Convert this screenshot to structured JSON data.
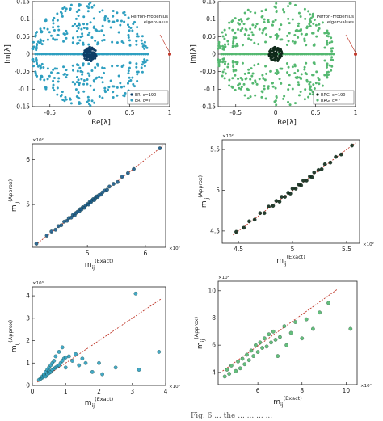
{
  "chart_data": [
    {
      "id": "p1",
      "type": "scatter",
      "xlabel": "Re[λ]",
      "ylabel": "Im[λ]",
      "xlim": [
        -0.72,
        1.0
      ],
      "ylim": [
        -0.15,
        0.15
      ],
      "xticks": [
        -0.5,
        0,
        0.5,
        1
      ],
      "xtick_labels": [
        "-0.5",
        "0",
        "0.5",
        "1"
      ],
      "yticks": [
        -0.15,
        -0.1,
        -0.05,
        0,
        0.05,
        0.1,
        0.15
      ],
      "ytick_labels": [
        "-0.15",
        "-0.1",
        "-0.05",
        "0",
        "0.05",
        "0.1",
        "0.15"
      ],
      "grid": false,
      "legend_position": "bottom-right",
      "annotation": {
        "text": [
          "Perron-Frobenius",
          "eigenvalue"
        ],
        "x": 1.0,
        "y": 0.0
      },
      "series": [
        {
          "name": "ER, c=190",
          "color": "#0d3d66",
          "marker": "dot"
        },
        {
          "name": "ER, c=7",
          "color": "#2e9fc0",
          "marker": "dot"
        }
      ]
    },
    {
      "id": "p2",
      "type": "scatter",
      "xlabel": "Re[λ]",
      "ylabel": "Im[λ]",
      "xlim": [
        -0.72,
        1.0
      ],
      "ylim": [
        -0.15,
        0.15
      ],
      "xticks": [
        -0.5,
        0,
        0.5,
        1
      ],
      "xtick_labels": [
        "-0.5",
        "0",
        "0.5",
        "1"
      ],
      "yticks": [
        -0.15,
        -0.1,
        -0.05,
        0,
        0.05,
        0.1,
        0.15
      ],
      "ytick_labels": [
        "-0.15",
        "-0.1",
        "-0.05",
        "0",
        "0.05",
        "0.1",
        "0.15"
      ],
      "grid": false,
      "legend_position": "bottom-right",
      "annotation": {
        "text": [
          "Perron-Frobenius",
          "eigenvalues"
        ],
        "x": 1.0,
        "y": 0.0
      },
      "series": [
        {
          "name": "RRG, c=190",
          "color": "#0f2a1a",
          "marker": "dot"
        },
        {
          "name": "RRG, c=7",
          "color": "#54b870",
          "marker": "dot"
        }
      ]
    },
    {
      "id": "p3",
      "type": "scatter",
      "xlabel": "m_ij^(Exact)",
      "ylabel": "m_ij^(Approx)",
      "xlim": [
        4.05,
        6.35
      ],
      "ylim": [
        4.05,
        6.35
      ],
      "xticks": [
        5,
        6
      ],
      "xtick_labels": [
        "5",
        "6"
      ],
      "yticks": [
        5,
        6
      ],
      "ytick_labels": [
        "5",
        "6"
      ],
      "x_exponent": "×10²",
      "y_exponent": "×10²",
      "reference_line": {
        "x": [
          4.1,
          6.3
        ],
        "y": [
          4.1,
          6.3
        ],
        "color": "#c0392b"
      },
      "color": "#1c5d8c",
      "points": [
        [
          4.12,
          4.13
        ],
        [
          4.3,
          4.31
        ],
        [
          4.38,
          4.4
        ],
        [
          4.45,
          4.44
        ],
        [
          4.5,
          4.52
        ],
        [
          4.55,
          4.54
        ],
        [
          4.6,
          4.62
        ],
        [
          4.65,
          4.64
        ],
        [
          4.68,
          4.7
        ],
        [
          4.72,
          4.71
        ],
        [
          4.75,
          4.77
        ],
        [
          4.78,
          4.76
        ],
        [
          4.8,
          4.81
        ],
        [
          4.83,
          4.84
        ],
        [
          4.86,
          4.85
        ],
        [
          4.88,
          4.9
        ],
        [
          4.9,
          4.89
        ],
        [
          4.92,
          4.94
        ],
        [
          4.95,
          4.93
        ],
        [
          4.97,
          4.98
        ],
        [
          5.0,
          5.01
        ],
        [
          5.02,
          5.0
        ],
        [
          5.04,
          5.06
        ],
        [
          5.06,
          5.05
        ],
        [
          5.08,
          5.09
        ],
        [
          5.1,
          5.12
        ],
        [
          5.12,
          5.1
        ],
        [
          5.14,
          5.15
        ],
        [
          5.16,
          5.18
        ],
        [
          5.18,
          5.17
        ],
        [
          5.2,
          5.21
        ],
        [
          5.23,
          5.22
        ],
        [
          5.26,
          5.27
        ],
        [
          5.3,
          5.31
        ],
        [
          5.34,
          5.33
        ],
        [
          5.38,
          5.4
        ],
        [
          5.45,
          5.46
        ],
        [
          5.52,
          5.5
        ],
        [
          5.6,
          5.62
        ],
        [
          5.7,
          5.7
        ],
        [
          5.8,
          5.79
        ],
        [
          6.25,
          6.25
        ]
      ]
    },
    {
      "id": "p4",
      "type": "scatter",
      "xlabel": "m_ij^(Exact)",
      "ylabel": "m_ij^(Approx)",
      "xlim": [
        4.35,
        5.62
      ],
      "ylim": [
        4.35,
        5.62
      ],
      "xticks": [
        4.5,
        5,
        5.5
      ],
      "xtick_labels": [
        "4.5",
        "5",
        "5.5"
      ],
      "yticks": [
        4.5,
        5,
        5.5
      ],
      "ytick_labels": [
        "4.5",
        "5",
        "5.5"
      ],
      "x_exponent": "×10²",
      "y_exponent": "×10²",
      "reference_line": {
        "x": [
          4.45,
          5.58
        ],
        "y": [
          4.45,
          5.58
        ],
        "color": "#c0392b"
      },
      "color": "#0f2a1a",
      "points": [
        [
          4.48,
          4.49
        ],
        [
          4.55,
          4.54
        ],
        [
          4.6,
          4.62
        ],
        [
          4.65,
          4.64
        ],
        [
          4.7,
          4.72
        ],
        [
          4.74,
          4.72
        ],
        [
          4.78,
          4.8
        ],
        [
          4.82,
          4.81
        ],
        [
          4.85,
          4.87
        ],
        [
          4.88,
          4.86
        ],
        [
          4.9,
          4.92
        ],
        [
          4.93,
          4.92
        ],
        [
          4.96,
          4.97
        ],
        [
          4.98,
          4.96
        ],
        [
          5.0,
          5.02
        ],
        [
          5.03,
          5.02
        ],
        [
          5.06,
          5.07
        ],
        [
          5.08,
          5.06
        ],
        [
          5.1,
          5.12
        ],
        [
          5.13,
          5.12
        ],
        [
          5.16,
          5.17
        ],
        [
          5.18,
          5.16
        ],
        [
          5.2,
          5.22
        ],
        [
          5.24,
          5.25
        ],
        [
          5.27,
          5.26
        ],
        [
          5.3,
          5.32
        ],
        [
          5.35,
          5.34
        ],
        [
          5.4,
          5.41
        ],
        [
          5.45,
          5.44
        ],
        [
          5.55,
          5.55
        ]
      ]
    },
    {
      "id": "p5",
      "type": "scatter",
      "xlabel": "m_ij^(Exact)",
      "ylabel": "m_ij^(Approx)",
      "xlim": [
        0,
        4.0
      ],
      "ylim": [
        0,
        4.4
      ],
      "xticks": [
        0,
        1,
        2,
        3,
        4
      ],
      "xtick_labels": [
        "0",
        "1",
        "2",
        "3",
        "4"
      ],
      "yticks": [
        0,
        1,
        2,
        3,
        4
      ],
      "ytick_labels": [
        "0",
        "1",
        "2",
        "3",
        "4"
      ],
      "x_exponent": "×10³",
      "y_exponent": "×10³",
      "reference_line": {
        "x": [
          0.15,
          3.9
        ],
        "y": [
          0.15,
          3.9
        ],
        "color": "#c0392b"
      },
      "color": "#2e9fc0",
      "points": [
        [
          0.2,
          0.25
        ],
        [
          0.25,
          0.3
        ],
        [
          0.3,
          0.35
        ],
        [
          0.3,
          0.4
        ],
        [
          0.35,
          0.45
        ],
        [
          0.35,
          0.5
        ],
        [
          0.4,
          0.4
        ],
        [
          0.4,
          0.6
        ],
        [
          0.45,
          0.5
        ],
        [
          0.45,
          0.7
        ],
        [
          0.5,
          0.55
        ],
        [
          0.5,
          0.65
        ],
        [
          0.5,
          0.8
        ],
        [
          0.55,
          0.6
        ],
        [
          0.55,
          0.9
        ],
        [
          0.6,
          0.7
        ],
        [
          0.6,
          1.0
        ],
        [
          0.65,
          0.75
        ],
        [
          0.65,
          1.1
        ],
        [
          0.7,
          0.8
        ],
        [
          0.7,
          1.3
        ],
        [
          0.75,
          0.85
        ],
        [
          0.8,
          0.9
        ],
        [
          0.8,
          1.5
        ],
        [
          0.85,
          1.0
        ],
        [
          0.9,
          1.1
        ],
        [
          0.9,
          1.7
        ],
        [
          0.95,
          1.2
        ],
        [
          1.0,
          1.25
        ],
        [
          1.0,
          0.8
        ],
        [
          1.1,
          1.3
        ],
        [
          1.2,
          1.1
        ],
        [
          1.3,
          1.4
        ],
        [
          1.4,
          0.9
        ],
        [
          1.5,
          1.2
        ],
        [
          1.6,
          1.0
        ],
        [
          1.8,
          0.6
        ],
        [
          2.0,
          1.0
        ],
        [
          2.1,
          0.5
        ],
        [
          2.5,
          0.8
        ],
        [
          3.1,
          4.1
        ],
        [
          3.2,
          0.7
        ],
        [
          3.8,
          1.5
        ]
      ]
    },
    {
      "id": "p6",
      "type": "scatter",
      "xlabel": "m_ij^(Exact)",
      "ylabel": "m_ij^(Approx)",
      "xlim": [
        4.2,
        10.5
      ],
      "ylim": [
        3.1,
        10.7
      ],
      "xticks": [
        6,
        8,
        10
      ],
      "xtick_labels": [
        "6",
        "8",
        "10"
      ],
      "yticks": [
        4,
        6,
        8,
        10
      ],
      "ytick_labels": [
        "4",
        "6",
        "8",
        "10"
      ],
      "x_exponent": "×10²",
      "y_exponent": "×10²",
      "reference_line": {
        "x": [
          4.4,
          9.6
        ],
        "y": [
          4.1,
          10.1
        ],
        "color": "#c0392b"
      },
      "color": "#54b870",
      "points": [
        [
          4.5,
          3.7
        ],
        [
          4.6,
          4.2
        ],
        [
          4.7,
          3.9
        ],
        [
          4.8,
          4.5
        ],
        [
          5.0,
          4.1
        ],
        [
          5.1,
          4.8
        ],
        [
          5.2,
          4.3
        ],
        [
          5.3,
          5.0
        ],
        [
          5.4,
          4.6
        ],
        [
          5.5,
          5.3
        ],
        [
          5.6,
          4.9
        ],
        [
          5.7,
          5.6
        ],
        [
          5.8,
          5.2
        ],
        [
          5.9,
          6.0
        ],
        [
          6.0,
          5.5
        ],
        [
          6.1,
          6.2
        ],
        [
          6.2,
          5.8
        ],
        [
          6.3,
          6.5
        ],
        [
          6.4,
          5.9
        ],
        [
          6.5,
          6.8
        ],
        [
          6.6,
          6.2
        ],
        [
          6.7,
          7.0
        ],
        [
          6.8,
          6.4
        ],
        [
          6.9,
          5.2
        ],
        [
          7.0,
          6.6
        ],
        [
          7.2,
          7.4
        ],
        [
          7.3,
          6.0
        ],
        [
          7.5,
          6.9
        ],
        [
          7.7,
          7.7
        ],
        [
          8.0,
          6.5
        ],
        [
          8.2,
          7.9
        ],
        [
          8.5,
          7.2
        ],
        [
          8.8,
          8.4
        ],
        [
          9.2,
          9.1
        ],
        [
          10.2,
          7.2
        ]
      ]
    }
  ],
  "caption_fragment": "Fig. 6 ... the ... ... ... ..."
}
